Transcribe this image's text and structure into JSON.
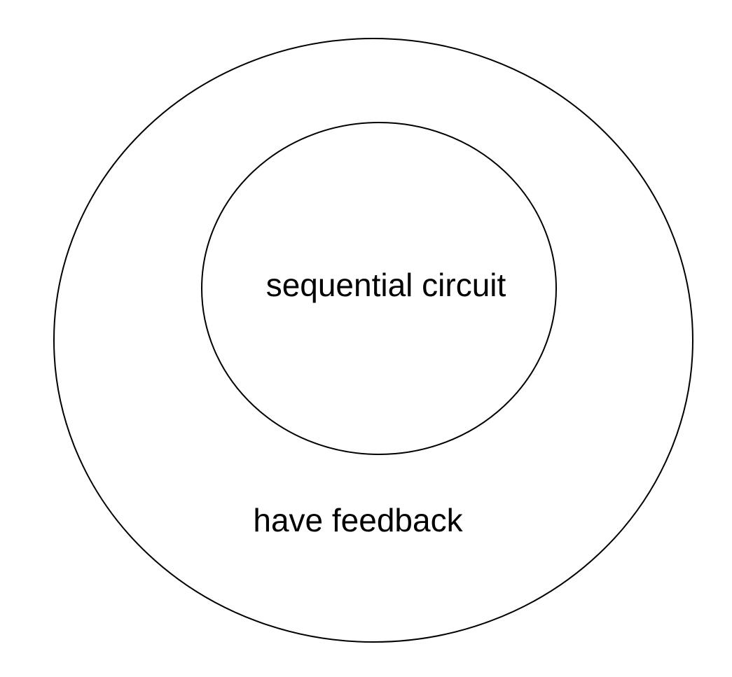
{
  "diagram": {
    "outer_label": "have feedback",
    "inner_label": "sequential circuit"
  }
}
